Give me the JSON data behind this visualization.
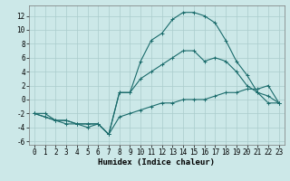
{
  "xlabel": "Humidex (Indice chaleur)",
  "background_color": "#cce8e8",
  "grid_color": "#aacccc",
  "line_color": "#1a6b6b",
  "xlim": [
    -0.5,
    23.5
  ],
  "ylim": [
    -6.5,
    13.5
  ],
  "xticks": [
    0,
    1,
    2,
    3,
    4,
    5,
    6,
    7,
    8,
    9,
    10,
    11,
    12,
    13,
    14,
    15,
    16,
    17,
    18,
    19,
    20,
    21,
    22,
    23
  ],
  "yticks": [
    -6,
    -4,
    -2,
    0,
    2,
    4,
    6,
    8,
    10,
    12
  ],
  "line1_x": [
    0,
    1,
    2,
    3,
    4,
    5,
    6,
    7,
    8,
    9,
    10,
    11,
    12,
    13,
    14,
    15,
    16,
    17,
    18,
    19,
    20,
    21,
    22,
    23
  ],
  "line1_y": [
    -2,
    -2,
    -3,
    -3,
    -3.5,
    -3.5,
    -3.5,
    -5,
    -2.5,
    -2,
    -1.5,
    -1,
    -0.5,
    -0.5,
    0,
    0,
    0,
    0.5,
    1,
    1,
    1.5,
    1.5,
    2,
    -0.5
  ],
  "line2_x": [
    0,
    1,
    2,
    3,
    4,
    5,
    6,
    7,
    8,
    9,
    10,
    11,
    12,
    13,
    14,
    15,
    16,
    17,
    18,
    19,
    20,
    21,
    22,
    23
  ],
  "line2_y": [
    -2,
    -2.5,
    -3,
    -3.5,
    -3.5,
    -4,
    -3.5,
    -5,
    1,
    1,
    5.5,
    8.5,
    9.5,
    11.5,
    12.5,
    12.5,
    12,
    11,
    8.5,
    5.5,
    3.5,
    1,
    -0.5,
    -0.5
  ],
  "line3_x": [
    0,
    2,
    3,
    4,
    5,
    6,
    7,
    8,
    9,
    10,
    11,
    12,
    13,
    14,
    15,
    16,
    17,
    18,
    19,
    20,
    21,
    22,
    23
  ],
  "line3_y": [
    -2,
    -3,
    -3,
    -3.5,
    -3.5,
    -3.5,
    -5,
    1,
    1,
    3,
    4,
    5,
    6,
    7,
    7,
    5.5,
    6,
    5.5,
    4,
    2,
    1,
    0.5,
    -0.5
  ],
  "marker": "+",
  "markersize": 3,
  "linewidth": 0.8,
  "tick_fontsize": 5.5,
  "xlabel_fontsize": 6.5
}
